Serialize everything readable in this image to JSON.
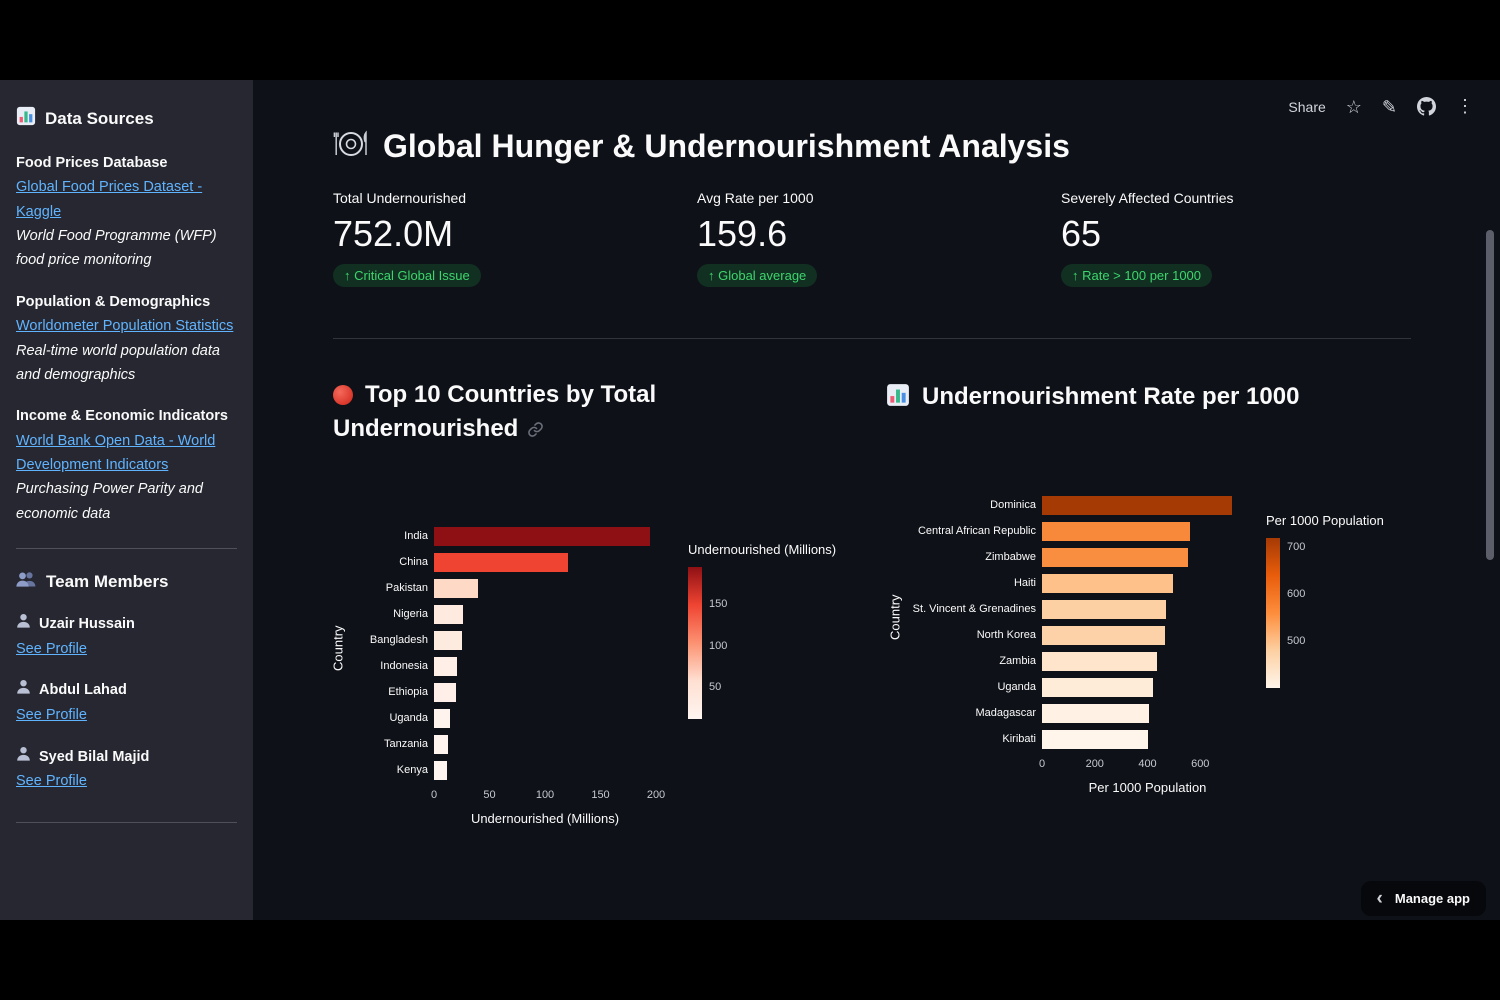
{
  "colors": {
    "app_bg": "#0e1117",
    "sidebar_bg": "#262730",
    "link": "#60b4ff",
    "badge_text": "#3dd56d",
    "badge_bg": "rgba(33,195,84,0.18)"
  },
  "toolbar": {
    "share_label": "Share"
  },
  "header": {
    "title": "Global Hunger & Undernourishment Analysis"
  },
  "metrics": [
    {
      "label": "Total Undernourished",
      "value": "752.0M",
      "delta": "↑ Critical Global Issue"
    },
    {
      "label": "Avg Rate per 1000",
      "value": "159.6",
      "delta": "↑ Global average"
    },
    {
      "label": "Severely Affected Countries",
      "value": "65",
      "delta": "↑ Rate > 100 per 1000"
    }
  ],
  "sidebar": {
    "data_sources": {
      "title": "Data Sources",
      "sections": [
        {
          "heading": "Food Prices Database",
          "link": "Global Food Prices Dataset - Kaggle",
          "description": "World Food Programme (WFP) food price monitoring"
        },
        {
          "heading": "Population & Demographics",
          "link": "Worldometer Population Statistics",
          "description": "Real-time world population data and demographics"
        },
        {
          "heading": "Income & Economic Indicators",
          "link": "World Bank Open Data - World Development Indicators",
          "description": "Purchasing Power Parity and economic data"
        }
      ]
    },
    "team": {
      "title": "Team Members",
      "members": [
        {
          "name": "Uzair Hussain",
          "link_label": "See Profile"
        },
        {
          "name": "Abdul Lahad",
          "link_label": "See Profile"
        },
        {
          "name": "Syed Bilal Majid",
          "link_label": "See Profile"
        }
      ]
    }
  },
  "chart_data": [
    {
      "type": "bar",
      "orientation": "horizontal",
      "title": "Top 10 Countries by Total Undernourished",
      "categories": [
        "India",
        "China",
        "Pakistan",
        "Nigeria",
        "Bangladesh",
        "Indonesia",
        "Ethiopia",
        "Uganda",
        "Tanzania",
        "Kenya"
      ],
      "values": [
        195,
        121,
        40,
        26,
        25,
        21,
        20,
        14,
        13,
        12
      ],
      "colors": [
        "#8f1014",
        "#ef4432",
        "#fdd9c6",
        "#feeade",
        "#feebe0",
        "#ffefe7",
        "#ffefe8",
        "#fff3ed",
        "#fff4ee",
        "#fff5f0"
      ],
      "xlabel": "Undernourished (Millions)",
      "ylabel": "Country",
      "xlim": [
        0,
        200
      ],
      "xticks": [
        0,
        50,
        100,
        150,
        200
      ],
      "grid": false,
      "colorbar": {
        "title": "Undernourished (Millions)",
        "ticks": [
          150,
          100,
          50
        ],
        "gradient": [
          "#8f1014",
          "#ef4432",
          "#fc9272",
          "#fee0d2",
          "#fff5f0"
        ]
      }
    },
    {
      "type": "bar",
      "orientation": "horizontal",
      "title": "Undernourishment Rate per 1000",
      "categories": [
        "Dominica",
        "Central African Republic",
        "Zimbabwe",
        "Haiti",
        "St. Vincent & Grenadines",
        "North Korea",
        "Zambia",
        "Uganda",
        "Madagascar",
        "Kiribati"
      ],
      "values": [
        720,
        560,
        555,
        495,
        470,
        465,
        435,
        420,
        405,
        400
      ],
      "colors": [
        "#a63a05",
        "#f8893a",
        "#f98e40",
        "#fdc189",
        "#fdd0a4",
        "#fdd2a9",
        "#fee5cc",
        "#feebd8",
        "#fff1e3",
        "#fff5eb"
      ],
      "xlabel": "Per 1000 Population",
      "ylabel": "Country",
      "xlim": [
        0,
        800
      ],
      "xticks": [
        0,
        200,
        400,
        600
      ],
      "grid": false,
      "colorbar": {
        "title": "Per 1000 Population",
        "ticks": [
          700,
          600,
          500
        ],
        "gradient": [
          "#a63a05",
          "#e85d0b",
          "#fd8d3c",
          "#fdd0a2",
          "#fff5eb"
        ]
      }
    }
  ],
  "footer": {
    "manage_app_label": "Manage app"
  },
  "icons": {
    "sidebar_header": "bar-chart-icon",
    "team_header": "people-icon",
    "member": "person-icon",
    "page_title": "plate-cutlery-icon",
    "chart_left_title": "red-circle-icon",
    "chart_left_anchor": "link-icon",
    "chart_right_title": "bar-chart-icon",
    "toolbar_icons": [
      "star-icon",
      "pencil-icon",
      "github-icon",
      "kebab-menu-icon"
    ],
    "footer": "chevron-left-icon",
    "metric_delta": "up-arrow"
  }
}
